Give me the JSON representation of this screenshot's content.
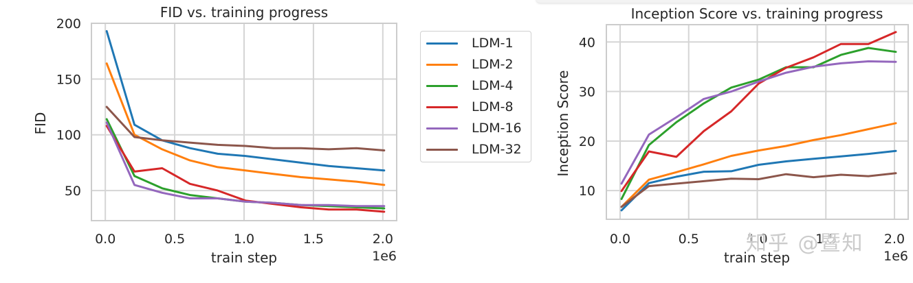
{
  "colors": {
    "LDM-1": "#1f77b4",
    "LDM-2": "#ff7f0e",
    "LDM-4": "#2ca02c",
    "LDM-8": "#d62728",
    "LDM-16": "#9467bd",
    "LDM-32": "#8c564b",
    "grid": "#d5d5d5",
    "frame": "#cccccc"
  },
  "legend": {
    "items": [
      {
        "label": "LDM-1",
        "color": "#1f77b4"
      },
      {
        "label": "LDM-2",
        "color": "#ff7f0e"
      },
      {
        "label": "LDM-4",
        "color": "#2ca02c"
      },
      {
        "label": "LDM-8",
        "color": "#d62728"
      },
      {
        "label": "LDM-16",
        "color": "#9467bd"
      },
      {
        "label": "LDM-32",
        "color": "#8c564b"
      }
    ]
  },
  "watermark": "知乎 @暨知",
  "chart_data": [
    {
      "type": "line",
      "title": "FID vs. training progress",
      "xlabel": "train step",
      "ylabel": "FID",
      "x_offset_label": "1e6",
      "xlim": [
        -0.1,
        2.1
      ],
      "ylim": [
        23,
        200
      ],
      "xticks": [
        "0.0",
        "0.5",
        "1.0",
        "1.5",
        "2.0"
      ],
      "yticks": [
        "50",
        "100",
        "150",
        "200"
      ],
      "grid": true,
      "legend_position": "outside right",
      "x": [
        0.01,
        0.21,
        0.41,
        0.61,
        0.81,
        1.01,
        1.21,
        1.41,
        1.61,
        1.81,
        2.01
      ],
      "series": [
        {
          "name": "LDM-1",
          "values": [
            193,
            109,
            95,
            88,
            83,
            81,
            78,
            75,
            72,
            70,
            68
          ]
        },
        {
          "name": "LDM-2",
          "values": [
            164,
            100,
            87,
            77,
            71,
            68,
            65,
            62,
            60,
            58,
            55
          ]
        },
        {
          "name": "LDM-4",
          "values": [
            114,
            63,
            52,
            46,
            43,
            40,
            39,
            37,
            36,
            35,
            34
          ]
        },
        {
          "name": "LDM-8",
          "values": [
            108,
            67,
            70,
            56,
            50,
            41,
            38,
            35,
            33,
            33,
            31
          ]
        },
        {
          "name": "LDM-16",
          "values": [
            111,
            55,
            48,
            43,
            43,
            40,
            39,
            37,
            37,
            36,
            36
          ]
        },
        {
          "name": "LDM-32",
          "values": [
            125,
            98,
            95,
            93,
            91,
            90,
            88,
            88,
            87,
            88,
            86
          ]
        }
      ]
    },
    {
      "type": "line",
      "title": "Inception Score vs. training progress",
      "xlabel": "train step",
      "ylabel": "Inception Score",
      "x_offset_label": "1e6",
      "xlim": [
        -0.1,
        2.1
      ],
      "ylim": [
        4.2,
        43.5
      ],
      "xticks": [
        "0.0",
        "0.5",
        "1.0",
        "1.5",
        "2.0"
      ],
      "yticks": [
        "10",
        "20",
        "30",
        "40"
      ],
      "grid": true,
      "x": [
        0.01,
        0.21,
        0.41,
        0.61,
        0.81,
        1.01,
        1.21,
        1.41,
        1.61,
        1.81,
        2.01
      ],
      "series": [
        {
          "name": "LDM-1",
          "values": [
            6.0,
            11.5,
            12.8,
            13.8,
            13.9,
            15.2,
            15.9,
            16.4,
            16.9,
            17.4,
            18.0
          ]
        },
        {
          "name": "LDM-2",
          "values": [
            6.7,
            12.2,
            13.7,
            15.3,
            17.0,
            18.1,
            19.0,
            20.2,
            21.2,
            22.4,
            23.6
          ]
        },
        {
          "name": "LDM-4",
          "values": [
            8.3,
            19.2,
            23.8,
            27.6,
            30.8,
            32.4,
            34.9,
            34.9,
            37.4,
            38.8,
            38.0
          ]
        },
        {
          "name": "LDM-8",
          "values": [
            9.9,
            17.9,
            16.8,
            22.0,
            26.0,
            31.6,
            34.8,
            36.9,
            39.6,
            39.6,
            42.0
          ]
        },
        {
          "name": "LDM-16",
          "values": [
            11.4,
            21.3,
            24.8,
            28.5,
            30.0,
            32.0,
            33.8,
            35.0,
            35.7,
            36.1,
            36.0
          ]
        },
        {
          "name": "LDM-32",
          "values": [
            6.7,
            10.9,
            11.4,
            11.9,
            12.4,
            12.3,
            13.3,
            12.7,
            13.2,
            12.9,
            13.5
          ]
        }
      ]
    }
  ]
}
